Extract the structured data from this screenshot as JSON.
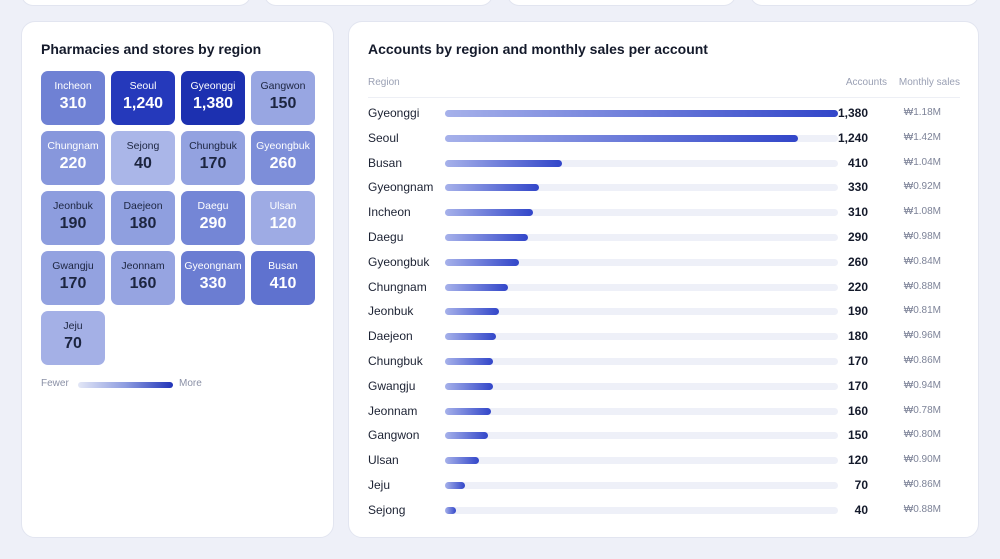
{
  "map": {
    "title": "Pharmacies and stores by region",
    "tiles": [
      {
        "name": "Incheon",
        "value": "310",
        "color": "#6f81d4",
        "light": false
      },
      {
        "name": "Seoul",
        "value": "1,240",
        "color": "#2539bb",
        "light": false
      },
      {
        "name": "Gyeonggi",
        "value": "1,380",
        "color": "#1c30b0",
        "light": false
      },
      {
        "name": "Gangwon",
        "value": "150",
        "color": "#98a6e2",
        "light": true
      },
      {
        "name": "Chungnam",
        "value": "220",
        "color": "#8797dc",
        "light": false
      },
      {
        "name": "Sejong",
        "value": "40",
        "color": "#aab6e8",
        "light": true
      },
      {
        "name": "Chungbuk",
        "value": "170",
        "color": "#93a2e0",
        "light": true
      },
      {
        "name": "Gyeongbuk",
        "value": "260",
        "color": "#7d8ed9",
        "light": false
      },
      {
        "name": "Jeonbuk",
        "value": "190",
        "color": "#8d9dde",
        "light": true
      },
      {
        "name": "Daejeon",
        "value": "180",
        "color": "#8f9fdf",
        "light": true
      },
      {
        "name": "Daegu",
        "value": "290",
        "color": "#7486d6",
        "light": false
      },
      {
        "name": "Ulsan",
        "value": "120",
        "color": "#9eabe4",
        "light": false
      },
      {
        "name": "Gwangju",
        "value": "170",
        "color": "#93a2e0",
        "light": true
      },
      {
        "name": "Jeonnam",
        "value": "160",
        "color": "#96a4e1",
        "light": true
      },
      {
        "name": "Gyeongnam",
        "value": "330",
        "color": "#6b7dd2",
        "light": false
      },
      {
        "name": "Busan",
        "value": "410",
        "color": "#5f72cf",
        "light": false
      },
      {
        "name": "Jeju",
        "value": "70",
        "color": "#a4b0e6",
        "light": true
      }
    ],
    "legend": {
      "fewer": "Fewer",
      "more": "More"
    }
  },
  "table": {
    "title": "Accounts by region and monthly sales per account",
    "headers": {
      "region": "Region",
      "accounts": "Accounts",
      "sales": "Monthly sales"
    },
    "max_accounts": 1380,
    "rows": [
      {
        "region": "Gyeonggi",
        "accounts": "1,380",
        "value": 1380,
        "sales": "₩1.18M"
      },
      {
        "region": "Seoul",
        "accounts": "1,240",
        "value": 1240,
        "sales": "₩1.42M"
      },
      {
        "region": "Busan",
        "accounts": "410",
        "value": 410,
        "sales": "₩1.04M"
      },
      {
        "region": "Gyeongnam",
        "accounts": "330",
        "value": 330,
        "sales": "₩0.92M"
      },
      {
        "region": "Incheon",
        "accounts": "310",
        "value": 310,
        "sales": "₩1.08M"
      },
      {
        "region": "Daegu",
        "accounts": "290",
        "value": 290,
        "sales": "₩0.98M"
      },
      {
        "region": "Gyeongbuk",
        "accounts": "260",
        "value": 260,
        "sales": "₩0.84M"
      },
      {
        "region": "Chungnam",
        "accounts": "220",
        "value": 220,
        "sales": "₩0.88M"
      },
      {
        "region": "Jeonbuk",
        "accounts": "190",
        "value": 190,
        "sales": "₩0.81M"
      },
      {
        "region": "Daejeon",
        "accounts": "180",
        "value": 180,
        "sales": "₩0.96M"
      },
      {
        "region": "Chungbuk",
        "accounts": "170",
        "value": 170,
        "sales": "₩0.86M"
      },
      {
        "region": "Gwangju",
        "accounts": "170",
        "value": 170,
        "sales": "₩0.94M"
      },
      {
        "region": "Jeonnam",
        "accounts": "160",
        "value": 160,
        "sales": "₩0.78M"
      },
      {
        "region": "Gangwon",
        "accounts": "150",
        "value": 150,
        "sales": "₩0.80M"
      },
      {
        "region": "Ulsan",
        "accounts": "120",
        "value": 120,
        "sales": "₩0.90M"
      },
      {
        "region": "Jeju",
        "accounts": "70",
        "value": 70,
        "sales": "₩0.86M"
      },
      {
        "region": "Sejong",
        "accounts": "40",
        "value": 40,
        "sales": "₩0.88M"
      }
    ]
  }
}
